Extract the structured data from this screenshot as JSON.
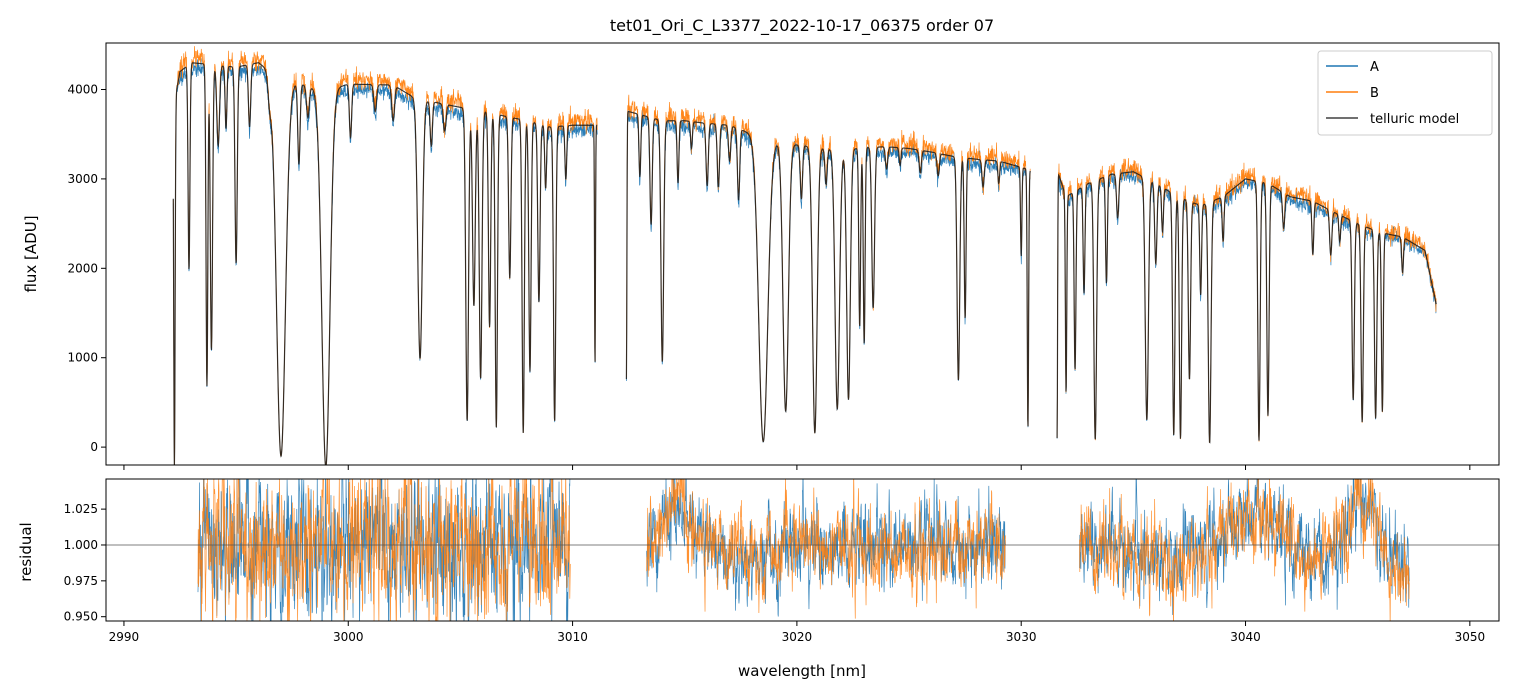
{
  "chart_data": [
    {
      "type": "line",
      "panel": "top",
      "title": "tet01_Ori_C_L3377_2022-10-17_06375  order 07",
      "xlabel": "",
      "ylabel": "flux [ADU]",
      "xlim": [
        2989.2,
        3051.3
      ],
      "ylim": [
        -200,
        4520
      ],
      "xticks": [
        2990,
        3000,
        3010,
        3020,
        3030,
        3040,
        3050
      ],
      "yticks": [
        0,
        1000,
        2000,
        3000,
        4000
      ],
      "ytick_labels": [
        "0",
        "1000",
        "2000",
        "3000",
        "4000"
      ],
      "legend_position": "top-right",
      "series": [
        {
          "name": "A",
          "color": "#1f77b4"
        },
        {
          "name": "B",
          "color": "#ff7f0e"
        },
        {
          "name": "telluric model",
          "color": "#404040"
        }
      ],
      "segments": [
        {
          "x0": 2992.2,
          "x1": 3011.1
        },
        {
          "x0": 3012.4,
          "x1": 3030.4
        },
        {
          "x0": 3031.6,
          "x1": 3048.5
        }
      ],
      "continuum": [
        [
          2992.2,
          3800
        ],
        [
          2992.5,
          4200
        ],
        [
          2993,
          4300
        ],
        [
          2995,
          4250
        ],
        [
          2996,
          4300
        ],
        [
          2997,
          4100
        ],
        [
          2998,
          4050
        ],
        [
          2999,
          3980
        ],
        [
          3000,
          4060
        ],
        [
          3002,
          4050
        ],
        [
          3003,
          3900
        ],
        [
          3004,
          3850
        ],
        [
          3005,
          3800
        ],
        [
          3006,
          3760
        ],
        [
          3007,
          3700
        ],
        [
          3008,
          3650
        ],
        [
          3009,
          3580
        ],
        [
          3010,
          3600
        ],
        [
          3011.1,
          3600
        ],
        [
          3012.4,
          3760
        ],
        [
          3013,
          3720
        ],
        [
          3014,
          3650
        ],
        [
          3015,
          3650
        ],
        [
          3016,
          3620
        ],
        [
          3017,
          3600
        ],
        [
          3018,
          3500
        ],
        [
          3019,
          3420
        ],
        [
          3020,
          3380
        ],
        [
          3021,
          3350
        ],
        [
          3022,
          3320
        ],
        [
          3023,
          3350
        ],
        [
          3024,
          3360
        ],
        [
          3025,
          3340
        ],
        [
          3026,
          3300
        ],
        [
          3027,
          3250
        ],
        [
          3028,
          3220
        ],
        [
          3029,
          3200
        ],
        [
          3030.4,
          3100
        ],
        [
          3031.6,
          3100
        ],
        [
          3032,
          2800
        ],
        [
          3033,
          2950
        ],
        [
          3034,
          3050
        ],
        [
          3035,
          3080
        ],
        [
          3036,
          2950
        ],
        [
          3037,
          2800
        ],
        [
          3038,
          2700
        ],
        [
          3039,
          2800
        ],
        [
          3040,
          3000
        ],
        [
          3041,
          2950
        ],
        [
          3042,
          2800
        ],
        [
          3043,
          2750
        ],
        [
          3044,
          2620
        ],
        [
          3045,
          2500
        ],
        [
          3046,
          2400
        ],
        [
          3047,
          2350
        ],
        [
          3048,
          2200
        ],
        [
          3048.5,
          1600
        ]
      ],
      "absorption_lines": [
        [
          2992.25,
          4100,
          0.03
        ],
        [
          2992.9,
          2300,
          0.04
        ],
        [
          2993.7,
          3600,
          0.04
        ],
        [
          2993.9,
          3200,
          0.05
        ],
        [
          2994.2,
          900,
          0.06
        ],
        [
          2994.55,
          700,
          0.04
        ],
        [
          2995.0,
          2200,
          0.05
        ],
        [
          2995.6,
          700,
          0.05
        ],
        [
          2996.5,
          300,
          0.08
        ],
        [
          2997.0,
          4200,
          0.2
        ],
        [
          2997.8,
          900,
          0.05
        ],
        [
          2998.2,
          350,
          0.06
        ],
        [
          2999.0,
          4200,
          0.18
        ],
        [
          3000.1,
          600,
          0.05
        ],
        [
          3001.2,
          300,
          0.06
        ],
        [
          3002.0,
          400,
          0.06
        ],
        [
          3003.2,
          2900,
          0.1
        ],
        [
          3003.7,
          500,
          0.05
        ],
        [
          3004.3,
          300,
          0.06
        ],
        [
          3005.3,
          3500,
          0.06
        ],
        [
          3005.6,
          2200,
          0.06
        ],
        [
          3005.9,
          3000,
          0.06
        ],
        [
          3006.3,
          2400,
          0.05
        ],
        [
          3006.6,
          3500,
          0.05
        ],
        [
          3007.2,
          1800,
          0.05
        ],
        [
          3007.8,
          3500,
          0.05
        ],
        [
          3008.1,
          2800,
          0.05
        ],
        [
          3008.5,
          2000,
          0.05
        ],
        [
          3008.8,
          700,
          0.04
        ],
        [
          3009.2,
          3300,
          0.05
        ],
        [
          3009.7,
          600,
          0.04
        ],
        [
          3011.0,
          2700,
          0.02
        ],
        [
          3012.4,
          3000,
          0.02
        ],
        [
          3013.0,
          700,
          0.04
        ],
        [
          3013.5,
          1200,
          0.05
        ],
        [
          3014.0,
          2700,
          0.06
        ],
        [
          3014.7,
          700,
          0.04
        ],
        [
          3015.3,
          300,
          0.04
        ],
        [
          3016.0,
          700,
          0.05
        ],
        [
          3016.5,
          700,
          0.05
        ],
        [
          3017.0,
          400,
          0.05
        ],
        [
          3017.4,
          800,
          0.05
        ],
        [
          3018.5,
          3400,
          0.2
        ],
        [
          3019.5,
          3000,
          0.12
        ],
        [
          3020.2,
          600,
          0.05
        ],
        [
          3020.8,
          3200,
          0.1
        ],
        [
          3021.3,
          400,
          0.05
        ],
        [
          3021.8,
          2900,
          0.1
        ],
        [
          3022.3,
          2800,
          0.08
        ],
        [
          3022.8,
          2000,
          0.04
        ],
        [
          3023.0,
          2200,
          0.04
        ],
        [
          3023.4,
          1800,
          0.06
        ],
        [
          3024.0,
          250,
          0.05
        ],
        [
          3024.6,
          200,
          0.04
        ],
        [
          3025.5,
          250,
          0.05
        ],
        [
          3026.3,
          250,
          0.05
        ],
        [
          3027.2,
          2500,
          0.06
        ],
        [
          3027.5,
          1800,
          0.04
        ],
        [
          3028.3,
          300,
          0.05
        ],
        [
          3029.0,
          250,
          0.04
        ],
        [
          3030.0,
          1000,
          0.03
        ],
        [
          3030.3,
          2900,
          0.03
        ],
        [
          3031.6,
          3000,
          0.02
        ],
        [
          3032.0,
          2200,
          0.03
        ],
        [
          3032.4,
          2000,
          0.04
        ],
        [
          3032.8,
          1200,
          0.04
        ],
        [
          3033.3,
          2900,
          0.06
        ],
        [
          3033.8,
          1200,
          0.04
        ],
        [
          3034.3,
          500,
          0.05
        ],
        [
          3035.6,
          2700,
          0.07
        ],
        [
          3036.0,
          900,
          0.05
        ],
        [
          3036.3,
          500,
          0.04
        ],
        [
          3036.8,
          2700,
          0.05
        ],
        [
          3037.1,
          2700,
          0.05
        ],
        [
          3037.5,
          2000,
          0.05
        ],
        [
          3038.0,
          1000,
          0.04
        ],
        [
          3038.4,
          2700,
          0.06
        ],
        [
          3039.0,
          500,
          0.04
        ],
        [
          3040.6,
          2900,
          0.05
        ],
        [
          3041.0,
          2600,
          0.05
        ],
        [
          3041.7,
          400,
          0.05
        ],
        [
          3043.0,
          600,
          0.04
        ],
        [
          3043.8,
          500,
          0.05
        ],
        [
          3044.2,
          300,
          0.04
        ],
        [
          3044.8,
          2000,
          0.05
        ],
        [
          3045.2,
          2200,
          0.05
        ],
        [
          3045.8,
          2100,
          0.05
        ],
        [
          3046.1,
          2000,
          0.04
        ],
        [
          3047.0,
          400,
          0.04
        ]
      ],
      "noise_amplitude": {
        "A": 45,
        "B": 55
      }
    },
    {
      "type": "line",
      "panel": "bottom",
      "title": "",
      "xlabel": "wavelength [nm]",
      "ylabel": "residual",
      "xlim": [
        2989.2,
        3051.3
      ],
      "ylim": [
        0.947,
        1.046
      ],
      "xticks": [
        2990,
        3000,
        3010,
        3020,
        3030,
        3040,
        3050
      ],
      "xtick_labels": [
        "2990",
        "3000",
        "3010",
        "3020",
        "3030",
        "3040",
        "3050"
      ],
      "yticks": [
        0.95,
        0.975,
        1.0,
        1.025
      ],
      "ytick_labels": [
        "0.950",
        "0.975",
        "1.000",
        "1.025"
      ],
      "reference_line": 1.0,
      "series": [
        {
          "name": "A",
          "color": "#1f77b4"
        },
        {
          "name": "B",
          "color": "#ff7f0e"
        }
      ],
      "segments": [
        {
          "x0": 2993.3,
          "x1": 3009.9,
          "noise": 0.022
        },
        {
          "x0": 3013.3,
          "x1": 3029.3,
          "noise": 0.012
        },
        {
          "x0": 3032.6,
          "x1": 3047.3,
          "noise": 0.012
        }
      ],
      "wander_points": [
        [
          2993.3,
          1.0
        ],
        [
          2996,
          1.0
        ],
        [
          3000,
          1.0
        ],
        [
          3004,
          1.0
        ],
        [
          3009.9,
          1.0
        ],
        [
          3013.3,
          0.99
        ],
        [
          3014.6,
          1.03
        ],
        [
          3016,
          1.0
        ],
        [
          3018,
          0.99
        ],
        [
          3020,
          1.0
        ],
        [
          3024,
          1.0
        ],
        [
          3029.3,
          1.0
        ],
        [
          3032.6,
          1.0
        ],
        [
          3035,
          0.995
        ],
        [
          3037,
          0.985
        ],
        [
          3039,
          1.005
        ],
        [
          3040,
          1.02
        ],
        [
          3041.5,
          1.01
        ],
        [
          3043,
          0.985
        ],
        [
          3044.5,
          1.01
        ],
        [
          3045.3,
          1.035
        ],
        [
          3046.5,
          0.99
        ],
        [
          3047.3,
          0.98
        ]
      ]
    }
  ]
}
